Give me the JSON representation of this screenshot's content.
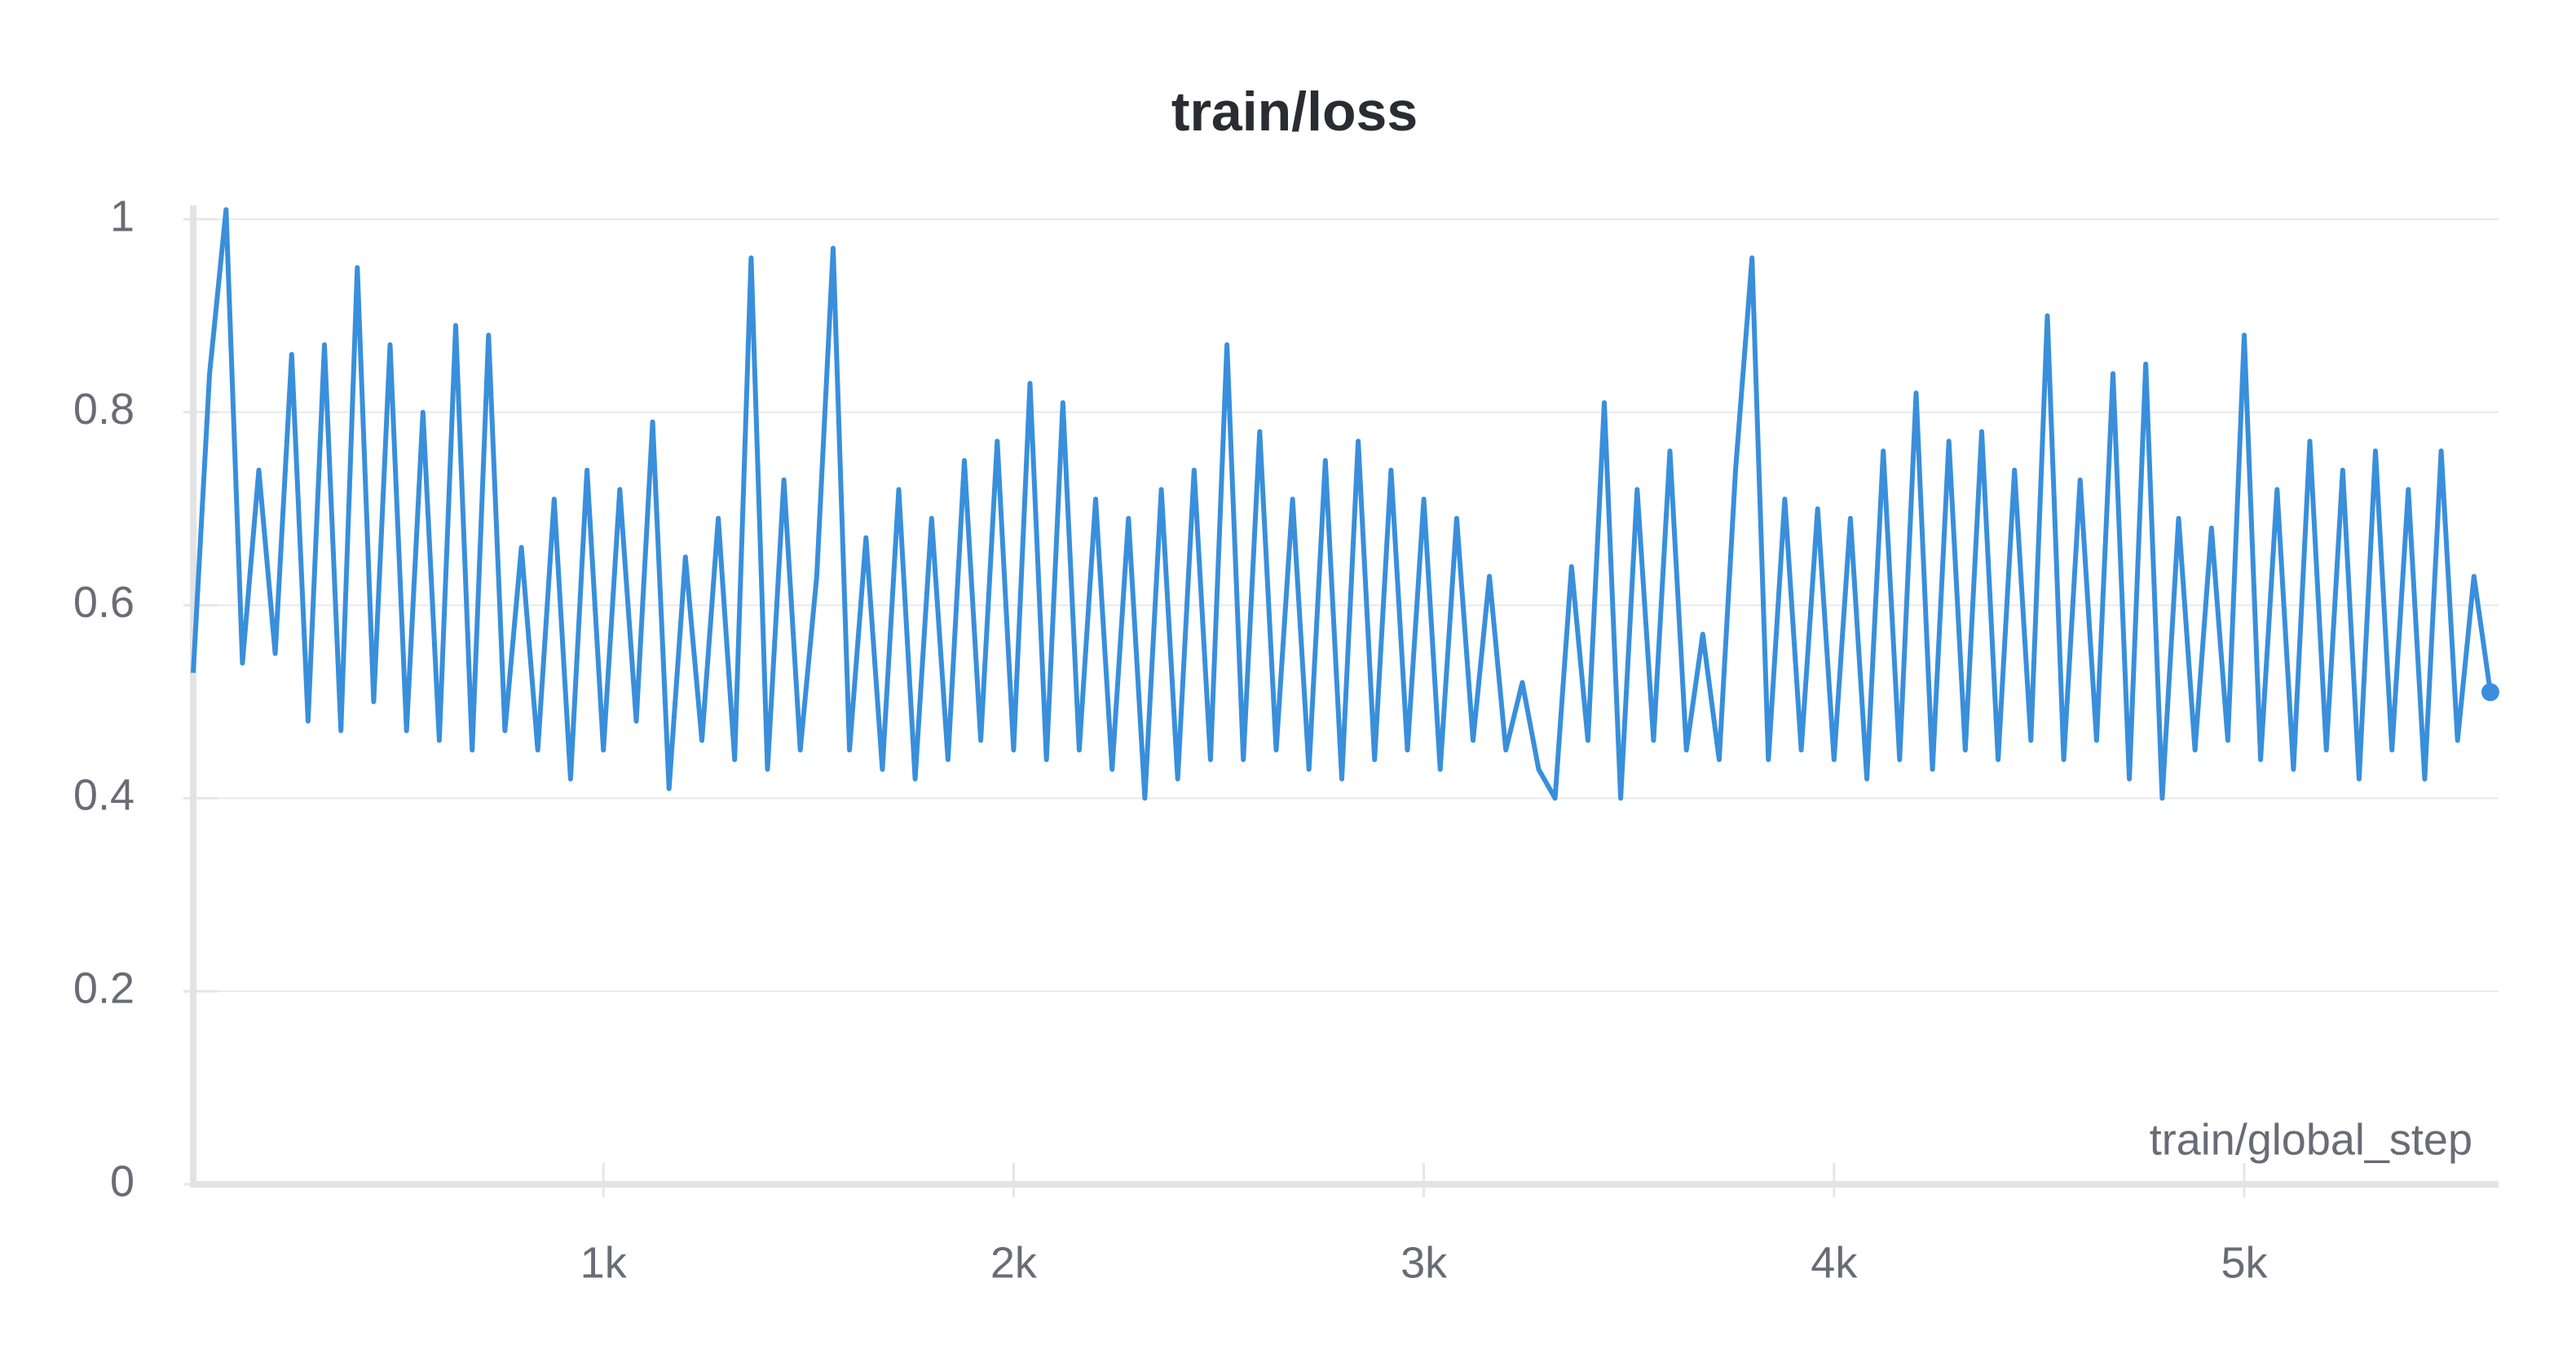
{
  "chart_data": {
    "type": "line",
    "title": "train/loss",
    "x_label": "train/global_step",
    "x": [
      0,
      40,
      80,
      120,
      160,
      200,
      240,
      280,
      320,
      360,
      400,
      440,
      480,
      520,
      560,
      600,
      640,
      680,
      720,
      760,
      800,
      840,
      880,
      920,
      960,
      1000,
      1040,
      1080,
      1120,
      1160,
      1200,
      1240,
      1280,
      1320,
      1360,
      1400,
      1440,
      1480,
      1520,
      1560,
      1600,
      1640,
      1680,
      1720,
      1760,
      1800,
      1840,
      1880,
      1920,
      1960,
      2000,
      2040,
      2080,
      2120,
      2160,
      2200,
      2240,
      2280,
      2320,
      2360,
      2400,
      2440,
      2480,
      2520,
      2560,
      2600,
      2640,
      2680,
      2720,
      2760,
      2800,
      2840,
      2880,
      2920,
      2960,
      3000,
      3040,
      3080,
      3120,
      3160,
      3200,
      3240,
      3280,
      3320,
      3360,
      3400,
      3440,
      3480,
      3520,
      3560,
      3600,
      3640,
      3680,
      3720,
      3760,
      3800,
      3840,
      3880,
      3920,
      3960,
      4000,
      4040,
      4080,
      4120,
      4160,
      4200,
      4240,
      4280,
      4320,
      4360,
      4400,
      4440,
      4480,
      4520,
      4560,
      4600,
      4640,
      4680,
      4720,
      4760,
      4800,
      4840,
      4880,
      4920,
      4960,
      5000,
      5040,
      5080,
      5120,
      5160,
      5200,
      5240,
      5280,
      5320,
      5360,
      5400,
      5440,
      5480,
      5520,
      5560,
      5600
    ],
    "series": [
      {
        "color": "#398fdb",
        "values": [
          0.53,
          0.84,
          1.01,
          0.54,
          0.74,
          0.55,
          0.86,
          0.48,
          0.87,
          0.47,
          0.95,
          0.5,
          0.87,
          0.47,
          0.8,
          0.46,
          0.89,
          0.45,
          0.88,
          0.47,
          0.66,
          0.45,
          0.71,
          0.42,
          0.74,
          0.45,
          0.72,
          0.48,
          0.79,
          0.41,
          0.65,
          0.46,
          0.69,
          0.44,
          0.96,
          0.43,
          0.73,
          0.45,
          0.63,
          0.97,
          0.45,
          0.67,
          0.43,
          0.72,
          0.42,
          0.69,
          0.44,
          0.75,
          0.46,
          0.77,
          0.45,
          0.83,
          0.44,
          0.81,
          0.45,
          0.71,
          0.43,
          0.69,
          0.4,
          0.72,
          0.42,
          0.74,
          0.44,
          0.87,
          0.44,
          0.78,
          0.45,
          0.71,
          0.43,
          0.75,
          0.42,
          0.77,
          0.44,
          0.74,
          0.45,
          0.71,
          0.43,
          0.69,
          0.46,
          0.63,
          0.45,
          0.52,
          0.43,
          0.4,
          0.64,
          0.46,
          0.81,
          0.4,
          0.72,
          0.46,
          0.76,
          0.45,
          0.57,
          0.44,
          0.74,
          0.96,
          0.44,
          0.71,
          0.45,
          0.7,
          0.44,
          0.69,
          0.42,
          0.76,
          0.44,
          0.82,
          0.43,
          0.77,
          0.45,
          0.78,
          0.44,
          0.74,
          0.46,
          0.9,
          0.44,
          0.73,
          0.46,
          0.84,
          0.42,
          0.85,
          0.4,
          0.69,
          0.45,
          0.68,
          0.46,
          0.88,
          0.44,
          0.72,
          0.43,
          0.77,
          0.45,
          0.74,
          0.42,
          0.76,
          0.45,
          0.72,
          0.42,
          0.76,
          0.46,
          0.63,
          0.51
        ]
      }
    ],
    "xlim": [
      0,
      5620
    ],
    "ylim": [
      0,
      1
    ],
    "xticks": [
      {
        "value": 1000,
        "label": "1k"
      },
      {
        "value": 2000,
        "label": "2k"
      },
      {
        "value": 3000,
        "label": "3k"
      },
      {
        "value": 4000,
        "label": "4k"
      },
      {
        "value": 5000,
        "label": "5k"
      }
    ],
    "yticks": [
      0,
      0.2,
      0.4,
      0.6,
      0.8,
      1
    ],
    "grid": true
  }
}
